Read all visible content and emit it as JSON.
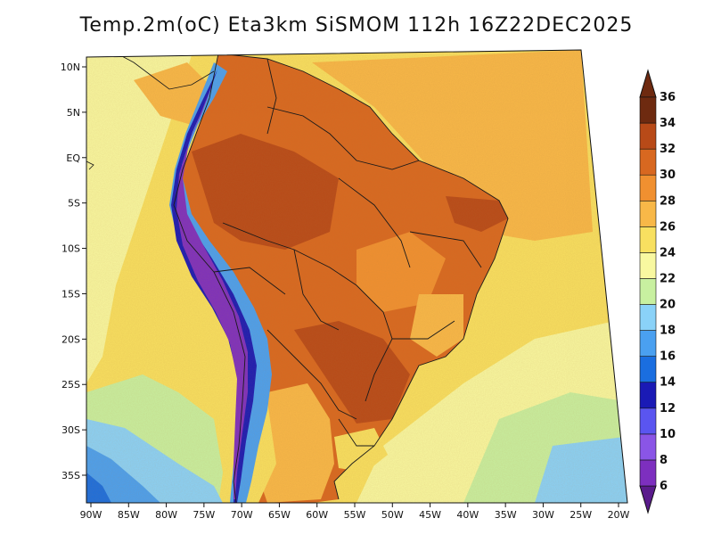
{
  "title": "Temp.2m(oC) Eta3km SiSMOM 112h 16Z22DEC2025",
  "map": {
    "lon_range": [
      -90,
      -20
    ],
    "lat_range": [
      -38,
      11
    ],
    "lat_ticks": [
      {
        "value": 10,
        "label": "10N"
      },
      {
        "value": 5,
        "label": "5N"
      },
      {
        "value": 0,
        "label": "EQ"
      },
      {
        "value": -5,
        "label": "5S"
      },
      {
        "value": -10,
        "label": "10S"
      },
      {
        "value": -15,
        "label": "15S"
      },
      {
        "value": -20,
        "label": "20S"
      },
      {
        "value": -25,
        "label": "25S"
      },
      {
        "value": -30,
        "label": "30S"
      },
      {
        "value": -35,
        "label": "35S"
      }
    ],
    "lon_ticks": [
      {
        "value": -90,
        "label": "90W"
      },
      {
        "value": -85,
        "label": "85W"
      },
      {
        "value": -80,
        "label": "80W"
      },
      {
        "value": -75,
        "label": "75W"
      },
      {
        "value": -70,
        "label": "70W"
      },
      {
        "value": -65,
        "label": "65W"
      },
      {
        "value": -60,
        "label": "60W"
      },
      {
        "value": -55,
        "label": "55W"
      },
      {
        "value": -50,
        "label": "50W"
      },
      {
        "value": -45,
        "label": "45W"
      },
      {
        "value": -40,
        "label": "40W"
      },
      {
        "value": -35,
        "label": "35W"
      },
      {
        "value": -30,
        "label": "30W"
      },
      {
        "value": -25,
        "label": "25W"
      },
      {
        "value": -20,
        "label": "20W"
      }
    ]
  },
  "colorbar": {
    "levels": [
      {
        "value": "6",
        "color": "#5a1b8c"
      },
      {
        "value": "8",
        "color": "#7d2fbf"
      },
      {
        "value": "10",
        "color": "#8a55e6"
      },
      {
        "value": "12",
        "color": "#5a55f0"
      },
      {
        "value": "14",
        "color": "#1a1ab5"
      },
      {
        "value": "16",
        "color": "#1a6ee0"
      },
      {
        "value": "18",
        "color": "#4aa0f0"
      },
      {
        "value": "20",
        "color": "#8ad2f8"
      },
      {
        "value": "22",
        "color": "#c8f0a0"
      },
      {
        "value": "24",
        "color": "#f8f8a0"
      },
      {
        "value": "26",
        "color": "#f8e060"
      },
      {
        "value": "28",
        "color": "#f8b848"
      },
      {
        "value": "30",
        "color": "#f09030"
      },
      {
        "value": "32",
        "color": "#d86820"
      },
      {
        "value": "34",
        "color": "#b84a18"
      },
      {
        "value": "36",
        "color": "#6e2a10"
      }
    ],
    "low_color": "#5a1b8c",
    "high_color": "#6e2a10"
  }
}
